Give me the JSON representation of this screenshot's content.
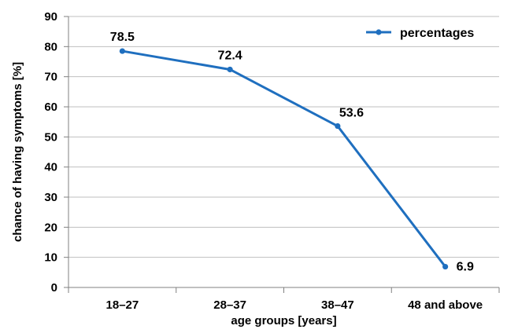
{
  "chart_data": {
    "type": "line",
    "title": "",
    "xlabel": "age groups [years]",
    "ylabel": "chance of having symptoms [%]",
    "categories": [
      "18–27",
      "28–37",
      "38–47",
      "48 and above"
    ],
    "series": [
      {
        "name": "percentages",
        "values": [
          78.5,
          72.4,
          53.6,
          6.9
        ],
        "data_labels": [
          "78.5",
          "72.4",
          "53.6",
          "6.9"
        ],
        "color": "#1f6fbf"
      }
    ],
    "ylim": [
      0,
      90
    ],
    "yticks": [
      0,
      10,
      20,
      30,
      40,
      50,
      60,
      70,
      80,
      90
    ],
    "ytick_labels": [
      "0",
      "10",
      "20",
      "30",
      "40",
      "50",
      "60",
      "70",
      "80",
      "90"
    ],
    "grid": true,
    "legend_position": "top-right",
    "colors": {
      "line": "#1f6fbf",
      "grid": "#bfbfbf",
      "axis": "#808080",
      "text": "#000000"
    }
  }
}
